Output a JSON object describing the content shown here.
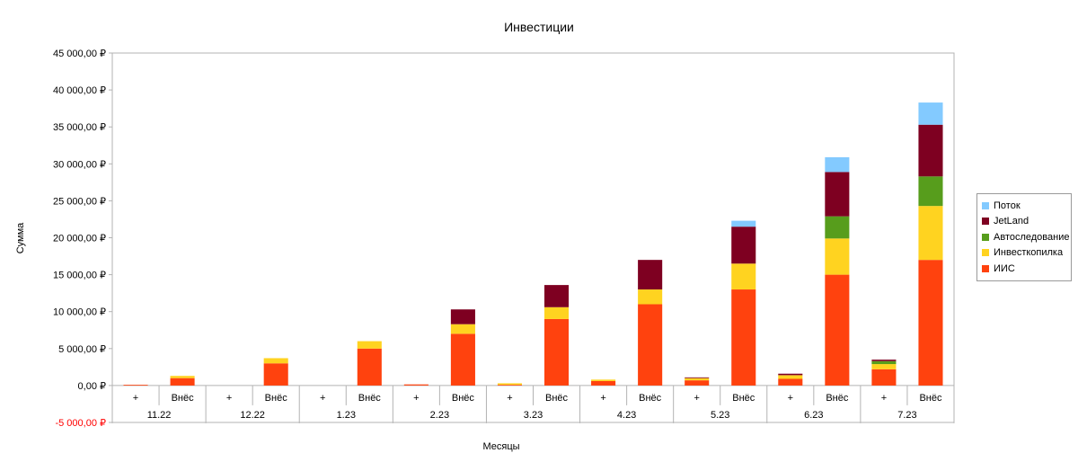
{
  "chart_data": {
    "type": "bar",
    "stacked": true,
    "title": "Инвестиции",
    "xlabel": "Месяцы",
    "ylabel": "Сумма",
    "ylim": [
      -5000,
      45000
    ],
    "yticks": [
      45000,
      40000,
      35000,
      30000,
      25000,
      20000,
      15000,
      10000,
      5000,
      0,
      -5000
    ],
    "ytick_labels": [
      "45 000,00 ₽",
      "40 000,00 ₽",
      "35 000,00 ₽",
      "30 000,00 ₽",
      "25 000,00 ₽",
      "20 000,00 ₽",
      "15 000,00 ₽",
      "10 000,00 ₽",
      "5 000,00 ₽",
      "0,00 ₽",
      "-5 000,00 ₽"
    ],
    "negative_tick_color": "#ff0000",
    "grid": false,
    "legend_position": "right",
    "groups": [
      "11.22",
      "12.22",
      "1.23",
      "2.23",
      "3.23",
      "4.23",
      "5.23",
      "6.23",
      "7.23"
    ],
    "subcategories": [
      "+",
      "Внёс"
    ],
    "series": [
      {
        "name": "ИИС",
        "color": "#ff420e",
        "values": [
          100,
          1000,
          0,
          3000,
          0,
          5000,
          150,
          7000,
          100,
          9000,
          600,
          11000,
          700,
          13000,
          900,
          15000,
          2200,
          17000
        ]
      },
      {
        "name": "Инвесткопилка",
        "color": "#ffd320",
        "values": [
          0,
          300,
          0,
          700,
          0,
          1000,
          0,
          1300,
          200,
          1600,
          200,
          2000,
          300,
          3500,
          500,
          4900,
          700,
          7300
        ]
      },
      {
        "name": "Автоследование",
        "color": "#579d1c",
        "values": [
          0,
          0,
          0,
          0,
          0,
          0,
          0,
          0,
          0,
          0,
          0,
          0,
          0,
          0,
          0,
          3000,
          400,
          4000
        ]
      },
      {
        "name": "JetLand",
        "color": "#7e0021",
        "values": [
          0,
          0,
          0,
          0,
          0,
          0,
          0,
          2000,
          0,
          3000,
          0,
          4000,
          100,
          5000,
          200,
          6000,
          200,
          7000
        ]
      },
      {
        "name": "Поток",
        "color": "#83caff",
        "values": [
          0,
          0,
          0,
          0,
          0,
          0,
          0,
          0,
          0,
          0,
          0,
          0,
          0,
          800,
          0,
          2000,
          0,
          3000
        ]
      }
    ]
  }
}
